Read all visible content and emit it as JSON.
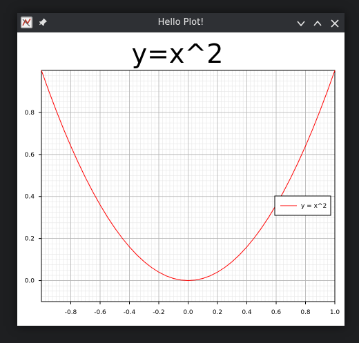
{
  "window": {
    "title": "Hello Plot!",
    "colors": {
      "titlebar": "#2e3034",
      "frame_bg": "#1e1f21",
      "plot_bg": "#ffffff"
    }
  },
  "icons": {
    "app": "plot-app-icon",
    "pin": "pin-icon",
    "minimize": "chevron-down-icon",
    "maximize": "chevron-up-icon",
    "close": "close-icon"
  },
  "chart_data": {
    "type": "line",
    "title": "y=x^2",
    "xlabel": "",
    "ylabel": "",
    "xlim": [
      -1.0,
      1.0
    ],
    "ylim": [
      -0.1,
      1.0
    ],
    "grid": true,
    "minor_grid": true,
    "legend_position": "right",
    "x_ticks": [
      "-0.8",
      "-0.6",
      "-0.4",
      "-0.2",
      "0.0",
      "0.2",
      "0.4",
      "0.6",
      "0.8",
      "1.0"
    ],
    "y_ticks": [
      "0.0",
      "0.2",
      "0.4",
      "0.6",
      "0.8"
    ],
    "series": [
      {
        "name": "y = x^2",
        "color": "#ff0000",
        "x": [
          -1.0,
          -0.95,
          -0.9,
          -0.85,
          -0.8,
          -0.75,
          -0.7,
          -0.65,
          -0.6,
          -0.55,
          -0.5,
          -0.45,
          -0.4,
          -0.35,
          -0.3,
          -0.25,
          -0.2,
          -0.15,
          -0.1,
          -0.05,
          0.0,
          0.05,
          0.1,
          0.15,
          0.2,
          0.25,
          0.3,
          0.35,
          0.4,
          0.45,
          0.5,
          0.55,
          0.6,
          0.65,
          0.7,
          0.75,
          0.8,
          0.85,
          0.9,
          0.95,
          1.0
        ],
        "y": [
          1.0,
          0.9025,
          0.81,
          0.7225,
          0.64,
          0.5625,
          0.49,
          0.4225,
          0.36,
          0.3025,
          0.25,
          0.2025,
          0.16,
          0.1225,
          0.09,
          0.0625,
          0.04,
          0.0225,
          0.01,
          0.0025,
          0.0,
          0.0025,
          0.01,
          0.0225,
          0.04,
          0.0625,
          0.09,
          0.1225,
          0.16,
          0.2025,
          0.25,
          0.3025,
          0.36,
          0.4225,
          0.49,
          0.5625,
          0.64,
          0.7225,
          0.81,
          0.9025,
          1.0
        ]
      }
    ]
  }
}
